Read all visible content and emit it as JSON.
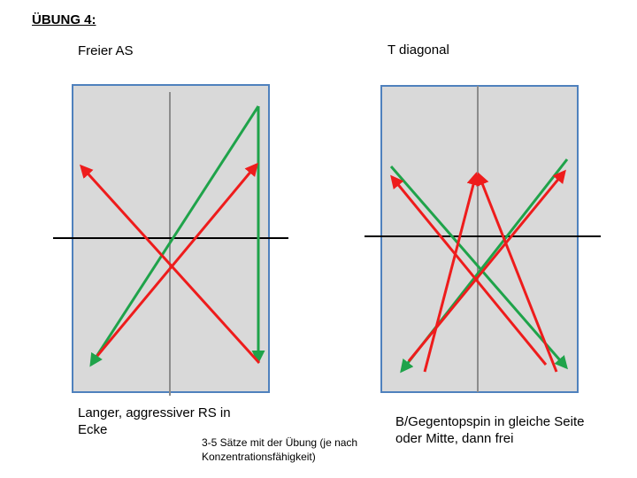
{
  "heading": "ÜBUNG 4:",
  "left_panel": {
    "title": "Freier AS",
    "caption_line1": "Langer, aggressiver RS in",
    "caption_line2": "Ecke"
  },
  "right_panel": {
    "title": "T diagonal",
    "caption_line1": "B/Gegentopspin in gleiche Seite",
    "caption_line2": "oder Mitte, dann frei"
  },
  "note_line1": "3-5 Sätze mit der Übung (je nach",
  "note_line2": "Konzentrationsfähigkeit)",
  "colors": {
    "table_fill": "#d9d9d9",
    "table_border": "#4f81bd",
    "center_line": "#8c8c8c",
    "net": "#000000",
    "green_arrow": "#1fa34a",
    "red_arrow": "#ee1c1c"
  }
}
